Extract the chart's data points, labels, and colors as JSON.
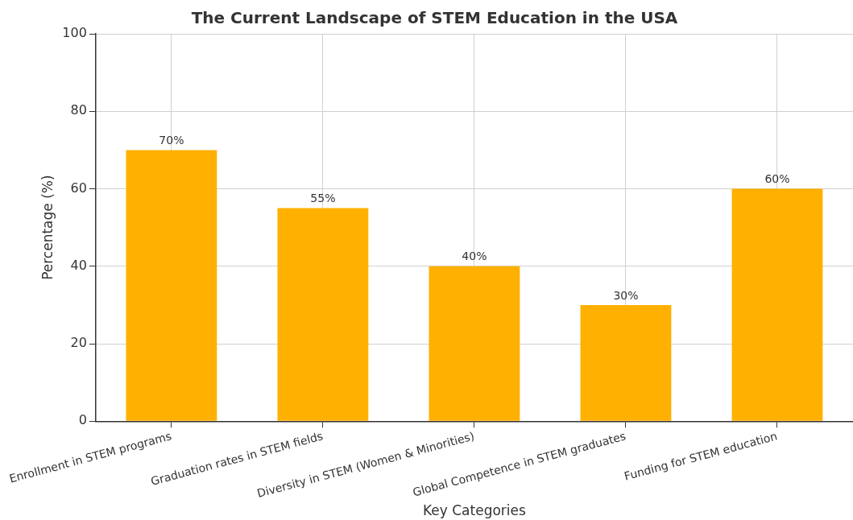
{
  "chart_data": {
    "type": "bar",
    "title": "The Current Landscape of STEM Education in the USA",
    "xlabel": "Key Categories",
    "ylabel": "Percentage (%)",
    "categories": [
      "Enrollment in STEM programs",
      "Graduation rates in STEM fields",
      "Diversity in STEM (Women & Minorities)",
      "Global Competence in STEM graduates",
      "Funding for STEM education"
    ],
    "values": [
      70,
      55,
      40,
      30,
      60
    ],
    "value_labels": [
      "70%",
      "55%",
      "40%",
      "30%",
      "60%"
    ],
    "color": "#ffb000",
    "ylim": [
      0,
      100
    ],
    "yticks": [
      0,
      20,
      40,
      60,
      80,
      100
    ],
    "grid": true,
    "legend": false
  }
}
